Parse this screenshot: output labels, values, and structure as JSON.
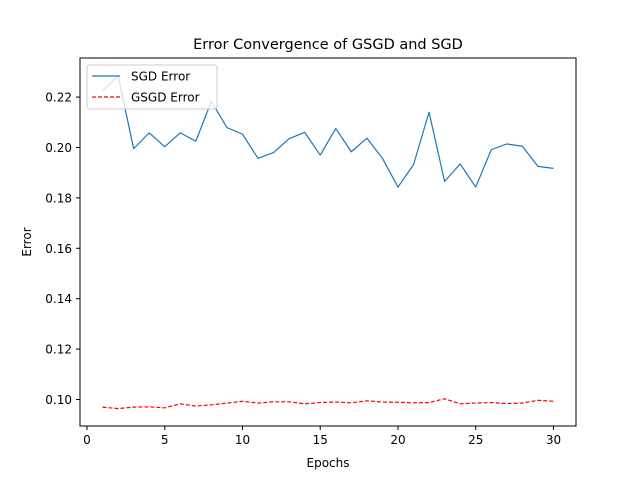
{
  "chart_data": {
    "type": "line",
    "title": "Error Convergence of GSGD and SGD",
    "xlabel": "Epochs",
    "ylabel": "Error",
    "xlim": [
      -0.45,
      31.45
    ],
    "ylim": [
      0.0895,
      0.2355
    ],
    "xticks": [
      0,
      5,
      10,
      15,
      20,
      25,
      30
    ],
    "yticks": [
      0.1,
      0.12,
      0.14,
      0.16,
      0.18,
      0.2,
      0.22
    ],
    "ytick_labels": [
      "0.10",
      "0.12",
      "0.14",
      "0.16",
      "0.18",
      "0.20",
      "0.22"
    ],
    "grid": false,
    "legend_position": "upper-left",
    "x": [
      1,
      2,
      3,
      4,
      5,
      6,
      7,
      8,
      9,
      10,
      11,
      12,
      13,
      14,
      15,
      16,
      17,
      18,
      19,
      20,
      21,
      22,
      23,
      24,
      25,
      26,
      27,
      28,
      29,
      30
    ],
    "series": [
      {
        "name": "SGD Error",
        "color": "#1f77b4",
        "style": "solid",
        "values": [
          0.2225,
          0.2285,
          0.1995,
          0.2058,
          0.2003,
          0.2058,
          0.2025,
          0.2183,
          0.2079,
          0.2053,
          0.1957,
          0.198,
          0.2035,
          0.206,
          0.197,
          0.2075,
          0.1983,
          0.2037,
          0.1957,
          0.1843,
          0.1932,
          0.214,
          0.1865,
          0.1935,
          0.1843,
          0.1991,
          0.2014,
          0.2005,
          0.1925,
          0.1917
        ]
      },
      {
        "name": "GSGD Error",
        "color": "#ff0000",
        "style": "dashed",
        "values": [
          0.097,
          0.0964,
          0.097,
          0.0971,
          0.0967,
          0.0983,
          0.0974,
          0.0979,
          0.0986,
          0.0993,
          0.0986,
          0.0991,
          0.0991,
          0.0983,
          0.0988,
          0.099,
          0.0987,
          0.0995,
          0.099,
          0.0989,
          0.0987,
          0.0988,
          0.1003,
          0.0983,
          0.0986,
          0.0988,
          0.0984,
          0.0986,
          0.0997,
          0.0993
        ]
      }
    ]
  }
}
